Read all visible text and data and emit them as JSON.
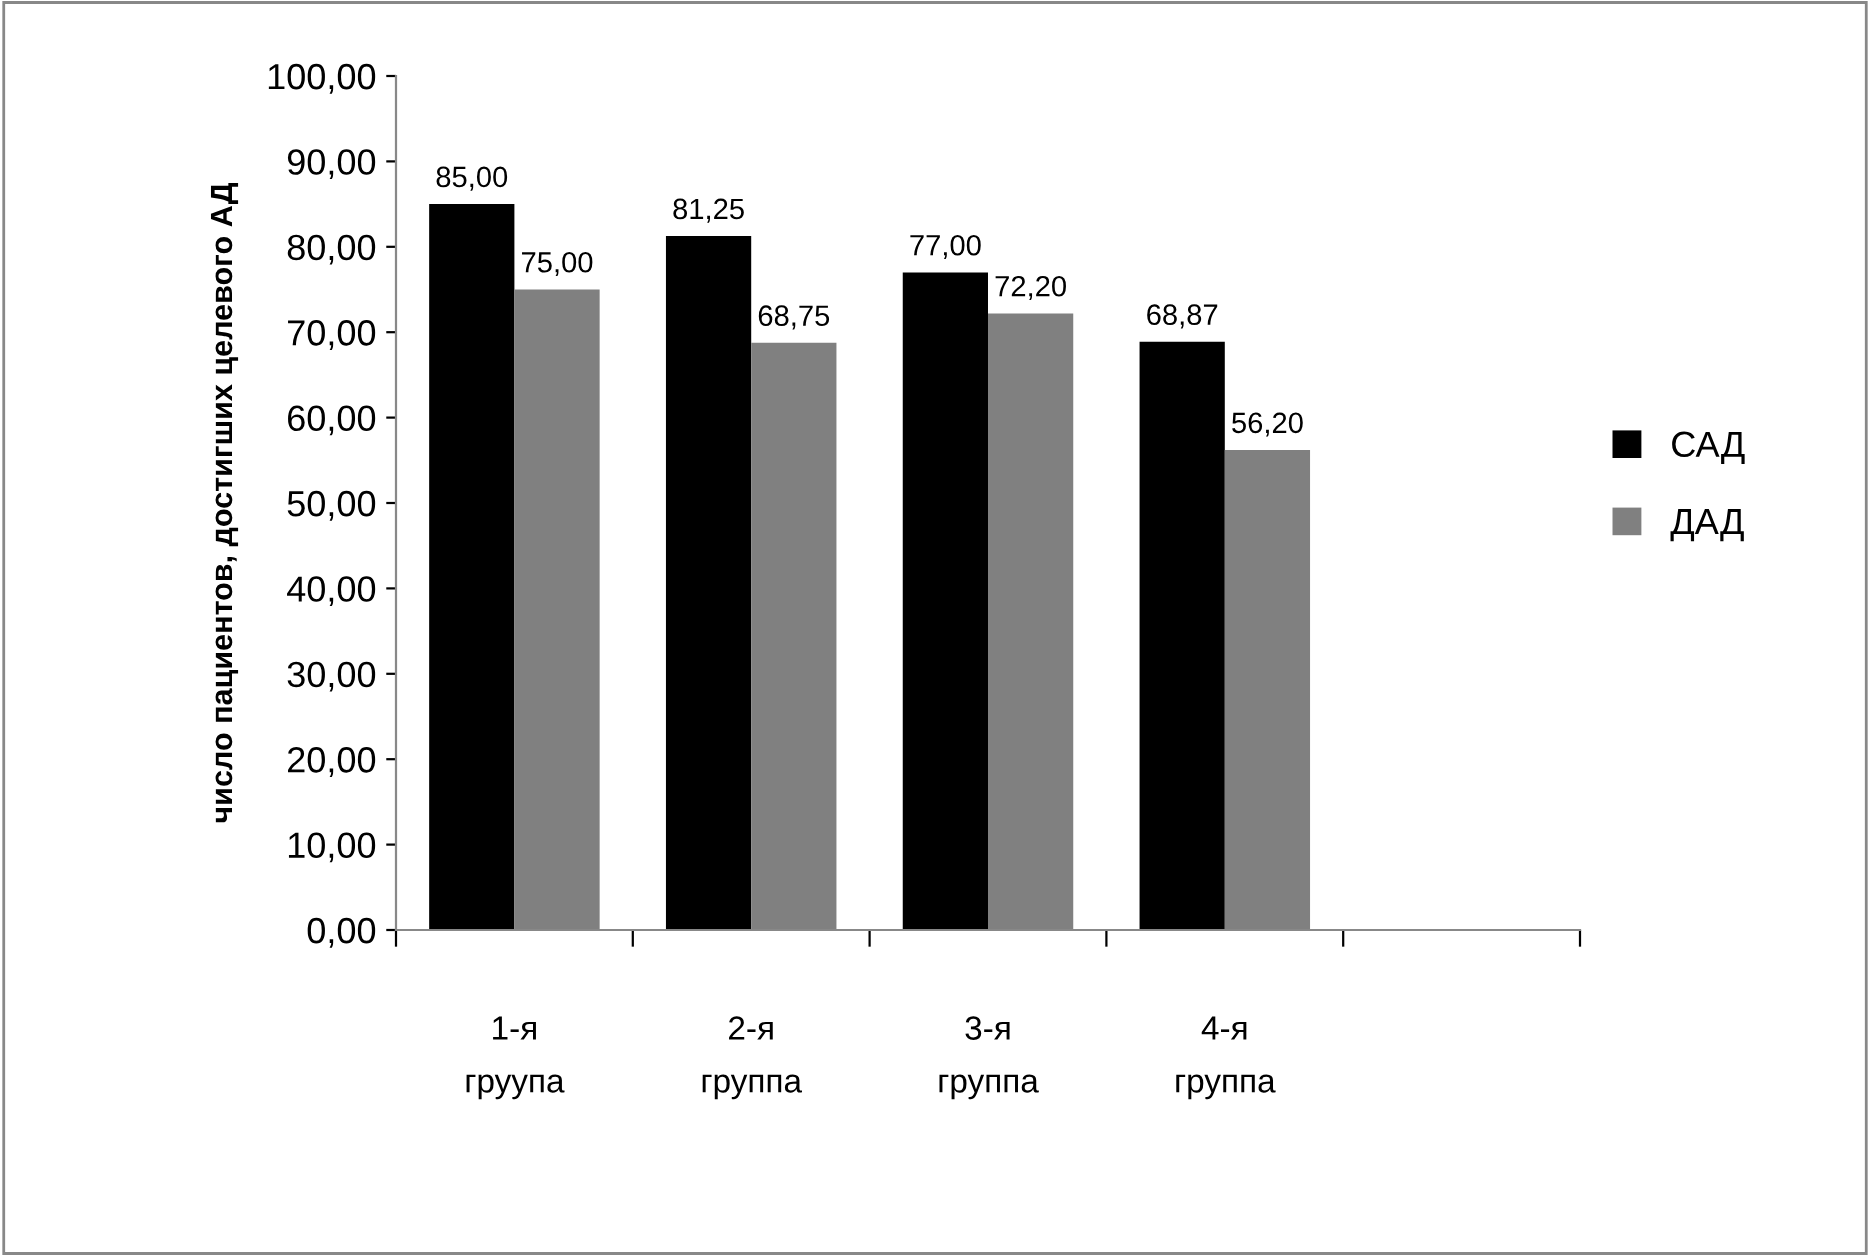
{
  "chart_data": {
    "type": "bar",
    "ylabel": "число пациентов, достигших целевого АД",
    "categories": [
      "1-я\nгруупа",
      "2-я\nгруппа",
      "3-я\nгруппа",
      "4-я\nгруппа",
      null
    ],
    "series": [
      {
        "name": "САД",
        "color": "#000000",
        "values": [
          85.0,
          81.25,
          77.0,
          68.87,
          null
        ],
        "value_labels": [
          "85,00",
          "81,25",
          "77,00",
          "68,87",
          null
        ]
      },
      {
        "name": "ДАД",
        "color": "#808080",
        "values": [
          75.0,
          68.75,
          72.2,
          56.2,
          null
        ],
        "value_labels": [
          "75,00",
          "68,75",
          "72,20",
          "56,20",
          null
        ]
      }
    ],
    "ylim": [
      0,
      100
    ],
    "yticks": [
      {
        "value": 0,
        "label": "0,00"
      },
      {
        "value": 10,
        "label": "10,00"
      },
      {
        "value": 20,
        "label": "20,00"
      },
      {
        "value": 30,
        "label": "30,00"
      },
      {
        "value": 40,
        "label": "40,00"
      },
      {
        "value": 50,
        "label": "50,00"
      },
      {
        "value": 60,
        "label": "60,00"
      },
      {
        "value": 70,
        "label": "70,00"
      },
      {
        "value": 80,
        "label": "80,00"
      },
      {
        "value": 90,
        "label": "90,00"
      },
      {
        "value": 100,
        "label": "100,00"
      }
    ],
    "grid": false,
    "legend": "right"
  }
}
